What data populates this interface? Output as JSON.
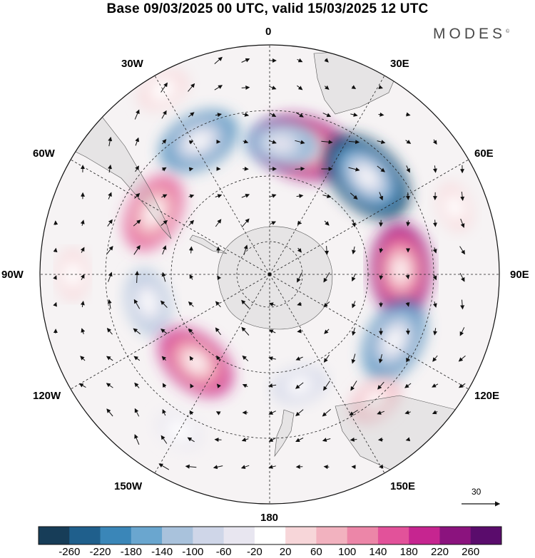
{
  "title": "Base 09/03/2025 00 UTC, valid 15/03/2025 12 UTC",
  "brand": "MODES",
  "brand_mark": "©",
  "longitude_labels": {
    "lon_0": "0",
    "lon_30e": "30E",
    "lon_60e": "60E",
    "lon_90e": "90E",
    "lon_120e": "120E",
    "lon_150e": "150E",
    "lon_180": "180",
    "lon_150w": "150W",
    "lon_120w": "120W",
    "lon_90w": "90W",
    "lon_60w": "60W",
    "lon_30w": "30W"
  },
  "reference_vector": {
    "value": "30"
  },
  "colorbar": {
    "ticks": [
      "-260",
      "-220",
      "-180",
      "-140",
      "-100",
      "-60",
      "-20",
      "20",
      "60",
      "100",
      "140",
      "180",
      "220",
      "260"
    ],
    "colors": [
      "#173d58",
      "#1f5f8c",
      "#3a86b8",
      "#6aa6cf",
      "#a9c2dc",
      "#cfd6e8",
      "#e8e6f0",
      "#ffffff",
      "#f7d6d9",
      "#f2b2bf",
      "#ec86a8",
      "#e2529a",
      "#c62590",
      "#8b137e",
      "#5a0c6c"
    ]
  },
  "anomaly_centers": [
    {
      "lon": 15,
      "lat": -50,
      "value": 250
    },
    {
      "lon": 45,
      "lat": -48,
      "value": -270
    },
    {
      "lon": 88,
      "lat": -50,
      "value": 240
    },
    {
      "lon": 118,
      "lat": -47,
      "value": -200
    },
    {
      "lon": 5,
      "lat": -50,
      "value": -140
    },
    {
      "lon": -28,
      "lat": -44,
      "value": -190
    },
    {
      "lon": -62,
      "lat": -50,
      "value": 180
    },
    {
      "lon": -103,
      "lat": -52,
      "value": -120
    },
    {
      "lon": -140,
      "lat": -55,
      "value": 200
    },
    {
      "lon": 165,
      "lat": -55,
      "value": -70
    },
    {
      "lon": 140,
      "lat": -40,
      "value": 70
    },
    {
      "lon": -90,
      "lat": -30,
      "value": 50
    },
    {
      "lon": -150,
      "lat": -35,
      "value": -40
    },
    {
      "lon": 70,
      "lat": -30,
      "value": 40
    },
    {
      "lon": -30,
      "lat": -25,
      "value": 60
    }
  ]
}
